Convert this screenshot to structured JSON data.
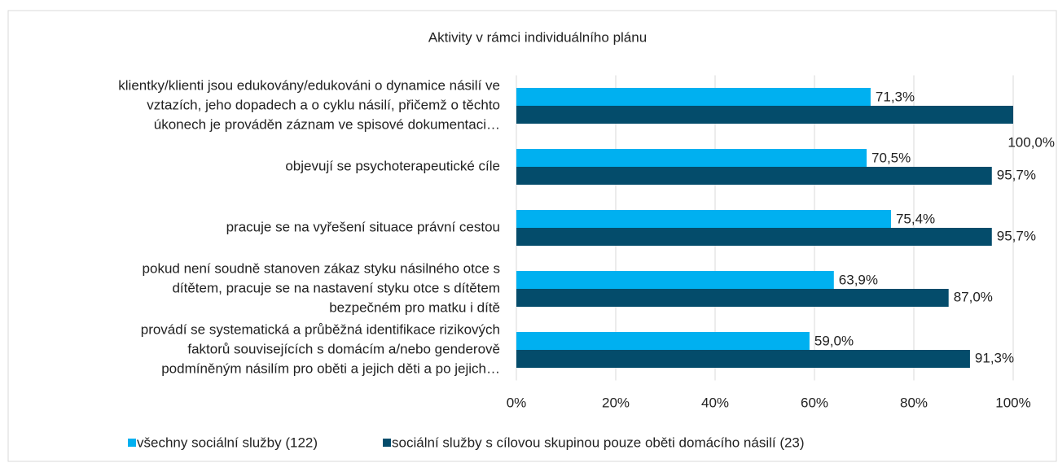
{
  "chart_data": {
    "type": "hbar",
    "title": "Aktivity v rámci individuálního plánu",
    "categories": [
      [
        "klientky/klienti jsou edukovány/edukováni o dynamice násilí ve",
        "vztazích, jeho dopadech a o cyklu násilí, přičemž o těchto",
        "úkonech je prováděn záznam ve spisové dokumentaci…"
      ],
      [
        "objevují se psychoterapeutické cíle"
      ],
      [
        "pracuje se na vyřešení situace právní cestou"
      ],
      [
        "pokud není soudně stanoven zákaz styku násilného otce s",
        "dítětem, pracuje se na nastavení styku otce s dítětem",
        "bezpečném pro matku i dítě"
      ],
      [
        "provádí se systematická a průběžná identifikace rizikových",
        "faktorů souvisejících s domácím a/nebo genderově",
        "podmíněným násilím pro oběti a jejich děti a po jejich…"
      ]
    ],
    "series": [
      {
        "name": "všechny sociální služby (122)",
        "color": "#00b0f0",
        "values": [
          71.3,
          70.5,
          75.4,
          63.9,
          59.0
        ],
        "value_labels": [
          "71,3%",
          "70,5%",
          "75,4%",
          "63,9%",
          "59,0%"
        ]
      },
      {
        "name": "sociální služby s cílovou skupinou pouze oběti domácího násilí (23)",
        "color": "#044c6b",
        "values": [
          100.0,
          95.7,
          95.7,
          87.0,
          91.3
        ],
        "value_labels": [
          "100,0%",
          "95,7%",
          "95,7%",
          "87,0%",
          "91,3%"
        ]
      }
    ],
    "xlim": [
      0,
      100
    ],
    "xticks": [
      {
        "value": 0,
        "label": "0%"
      },
      {
        "value": 20,
        "label": "20%"
      },
      {
        "value": 40,
        "label": "40%"
      },
      {
        "value": 60,
        "label": "60%"
      },
      {
        "value": 80,
        "label": "80%"
      },
      {
        "value": 100,
        "label": "100%"
      }
    ],
    "grid": true,
    "legend": "bottom"
  }
}
